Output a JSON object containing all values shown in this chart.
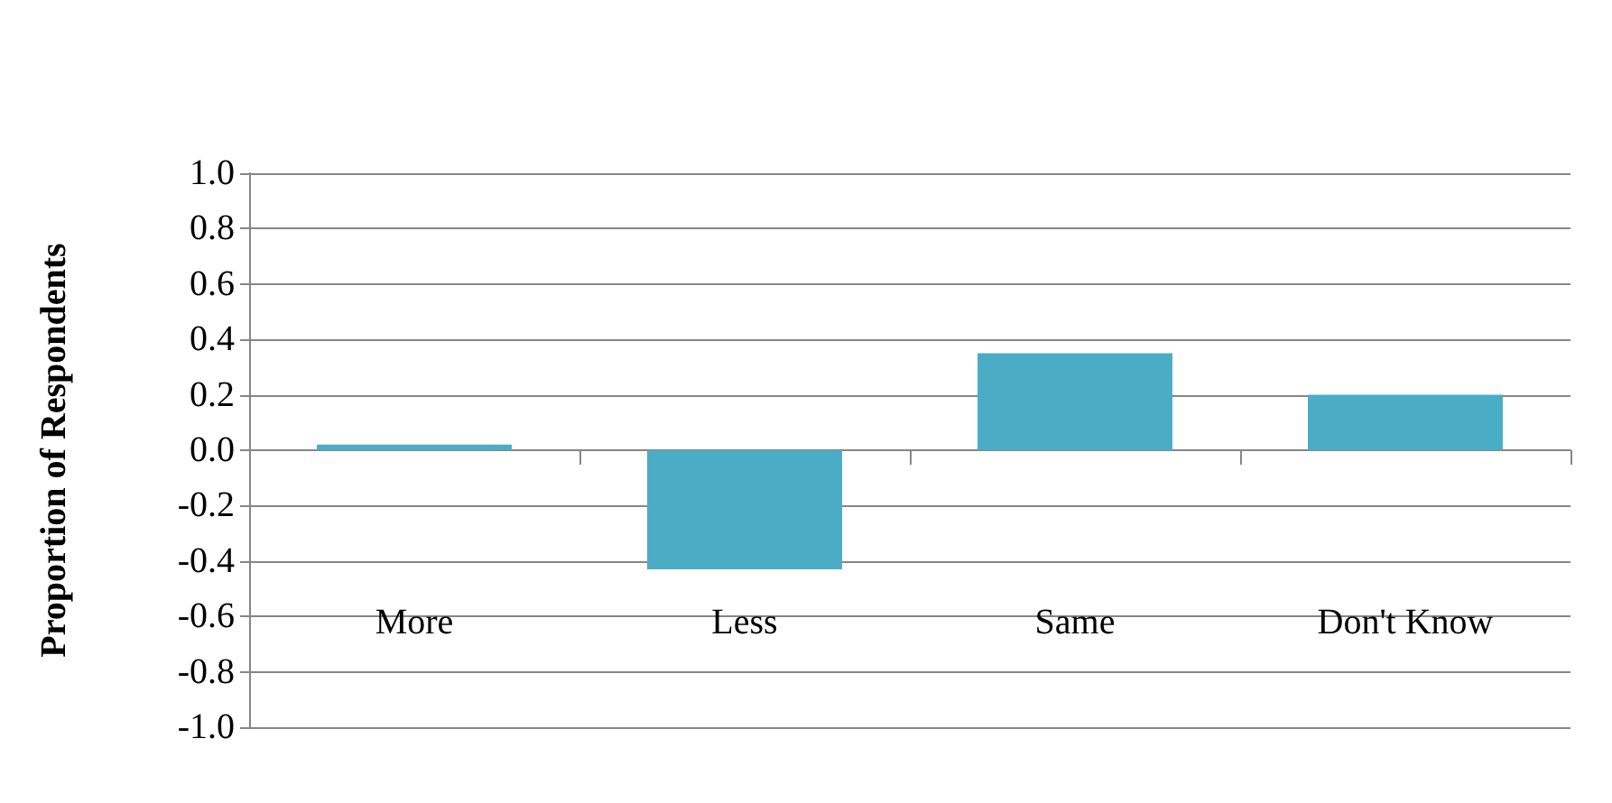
{
  "chart_data": {
    "type": "bar",
    "ylabel": "Proportion of Respondents",
    "categories": [
      "More",
      "Less",
      "Same",
      "Don't Know"
    ],
    "series": [
      {
        "color": "#4bacc6",
        "values": [
          0.02,
          -0.43,
          0.35,
          0.2
        ]
      }
    ],
    "ylim": [
      -1.0,
      1.0
    ],
    "yticks": [
      {
        "value": -1,
        "label": "-1.0"
      },
      {
        "value": -0.8,
        "label": "-0.8"
      },
      {
        "value": -0.6,
        "label": "-0.6"
      },
      {
        "value": -0.4,
        "label": "-0.4"
      },
      {
        "value": -0.2,
        "label": "-0.2"
      },
      {
        "value": 0,
        "label": "0.0"
      },
      {
        "value": 0.2,
        "label": "0.2"
      },
      {
        "value": 0.4,
        "label": "0.4"
      },
      {
        "value": 0.6,
        "label": "0.6"
      },
      {
        "value": 0.8,
        "label": "0.8"
      },
      {
        "value": 1,
        "label": "1.0"
      }
    ],
    "grid": true
  }
}
